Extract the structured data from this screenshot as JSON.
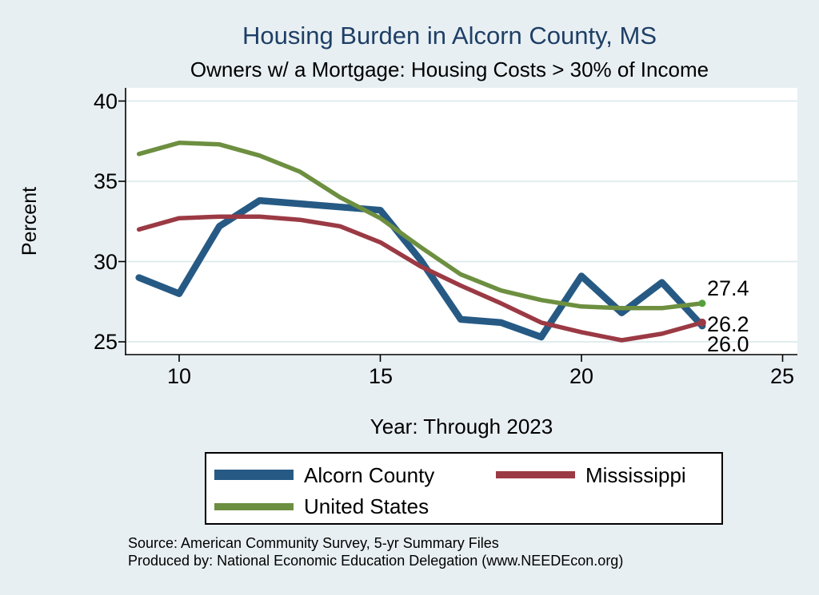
{
  "title": "Housing Burden in Alcorn County, MS",
  "subtitle": "Owners w/ a Mortgage: Housing Costs > 30% of Income",
  "colors": {
    "background": "#e8eff2",
    "plot_background": "#ffffff",
    "gridline": "#dde9ec",
    "axis": "#000000",
    "title": "#1e3f66",
    "alcorn_blue": "#265a84",
    "mississippi_red": "#9b3a44",
    "us_green": "#6d8f40"
  },
  "chart_data": {
    "type": "line",
    "title": "Housing Burden in Alcorn County, MS",
    "subtitle": "Owners w/ a Mortgage: Housing Costs > 30% of Income",
    "xlabel": "Year: Through 2023",
    "ylabel": "Percent",
    "x": [
      9,
      10,
      11,
      12,
      13,
      14,
      15,
      16,
      17,
      18,
      19,
      20,
      21,
      22,
      23
    ],
    "xticks": [
      10,
      15,
      20,
      25
    ],
    "yticks": [
      40,
      35,
      30,
      25
    ],
    "xlim": [
      8.7,
      25.9
    ],
    "ylim": [
      24.2,
      40.8
    ],
    "grid": "horizontal",
    "legend_position": "bottom",
    "series": [
      {
        "name": "Alcorn County",
        "color": "#265a84",
        "stroke_width": 8.5,
        "dot_r": 4.5,
        "dot_color": "#265a84",
        "values": [
          29.0,
          28.0,
          32.2,
          33.8,
          33.6,
          33.4,
          33.2,
          30.1,
          26.4,
          26.2,
          25.3,
          29.1,
          26.8,
          28.7,
          26.0
        ]
      },
      {
        "name": "Mississippi",
        "color": "#9b3a44",
        "stroke_width": 5.5,
        "dot_r": 5,
        "dot_color": "#9b3a44",
        "values": [
          32.0,
          32.7,
          32.8,
          32.8,
          32.6,
          32.2,
          31.2,
          29.7,
          28.5,
          27.4,
          26.2,
          25.6,
          25.1,
          25.5,
          26.2
        ]
      },
      {
        "name": "United States",
        "color": "#6d8f40",
        "stroke_width": 5.5,
        "dot_r": 4.5,
        "dot_color": "#55a03c",
        "values": [
          36.7,
          37.4,
          37.3,
          36.6,
          35.6,
          34.0,
          32.7,
          30.9,
          29.2,
          28.2,
          27.6,
          27.2,
          27.1,
          27.1,
          27.4
        ]
      }
    ],
    "end_labels": [
      {
        "text": "27.4",
        "series": "United States"
      },
      {
        "text": "26.2",
        "series": "Mississippi"
      },
      {
        "text": "26.0",
        "series": "Alcorn County"
      }
    ]
  },
  "legend": {
    "items": [
      {
        "label": "Alcorn County",
        "color": "#265a84",
        "thickness": 13
      },
      {
        "label": "Mississippi",
        "color": "#9b3a44",
        "thickness": 9
      },
      {
        "label": "United States",
        "color": "#6d8f40",
        "thickness": 9
      }
    ]
  },
  "footnotes": [
    "Source: American Community Survey, 5-yr Summary Files",
    "Produced by: National Economic Education Delegation (www.NEEDEcon.org)"
  ]
}
